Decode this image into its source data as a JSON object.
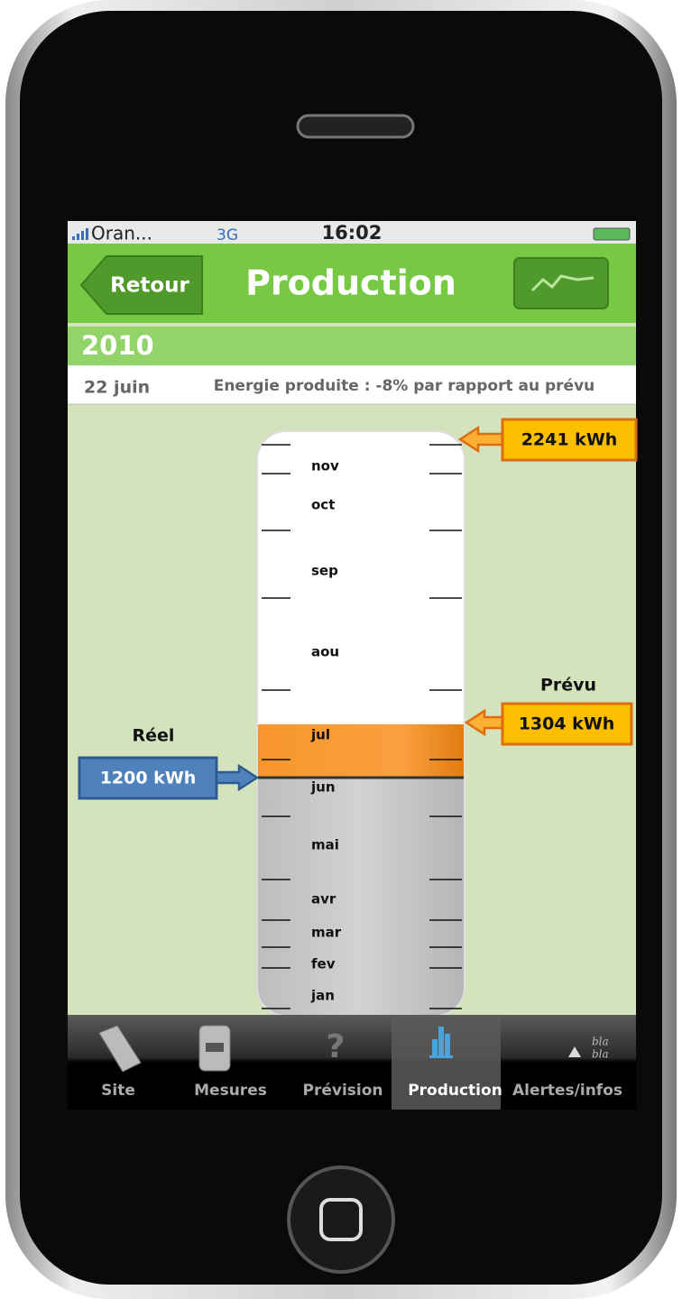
{
  "status_bar": {
    "carrier": "Oran...",
    "network": "3G",
    "time": "16:02"
  },
  "header": {
    "back_button": "Retour",
    "title": "Production"
  },
  "year": "2010",
  "info": {
    "date": "22 juin",
    "summary": "Energie produite : -8% par rapport au prévu"
  },
  "gauge": {
    "months": [
      "nov",
      "oct",
      "sep",
      "aou",
      "jul",
      "jun",
      "mai",
      "avr",
      "mar",
      "fev",
      "jan"
    ],
    "target": {
      "label": "2241 kWh"
    },
    "forecast": {
      "title": "Prévu",
      "label": "1304 kWh"
    },
    "actual": {
      "title": "Réel",
      "label": "1200 kWh"
    }
  },
  "tab_bar": {
    "tabs": [
      "Site",
      "Mesures",
      "Prévision",
      "Production",
      "Alertes/infos"
    ],
    "alert_icon_text": [
      "bla",
      "bla"
    ]
  }
}
